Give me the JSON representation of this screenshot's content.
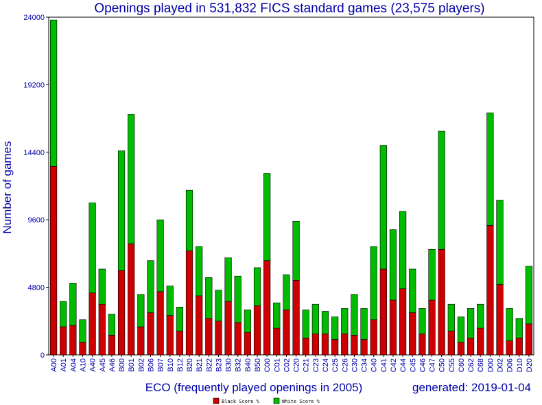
{
  "chart_data": {
    "type": "bar",
    "stacked": true,
    "title": "Openings played in 531,832 FICS standard games (23,575 players)",
    "xlabel": "ECO (frequently played openings in 2005)",
    "ylabel": "Number of games",
    "footer": "generated: 2019-01-04",
    "ylim": [
      0,
      24000
    ],
    "yticks": [
      "0",
      "4800",
      "9600",
      "14400",
      "19200",
      "24000"
    ],
    "ytick_values": [
      0,
      4800,
      9600,
      14400,
      19200,
      24000
    ],
    "grid": false,
    "legend_position": "bottom-center",
    "categories": [
      "A00",
      "A01",
      "A04",
      "A10",
      "A40",
      "A45",
      "A46",
      "B00",
      "B01",
      "B02",
      "B06",
      "B07",
      "B10",
      "B12",
      "B20",
      "B21",
      "B22",
      "B23",
      "B30",
      "B32",
      "B40",
      "B50",
      "C00",
      "C01",
      "C02",
      "C20",
      "C21",
      "C23",
      "C24",
      "C25",
      "C26",
      "C30",
      "C34",
      "C40",
      "C41",
      "C42",
      "C44",
      "C45",
      "C46",
      "C47",
      "C50",
      "C55",
      "C60",
      "C62",
      "C68",
      "D00",
      "D02",
      "D06",
      "D10",
      "D20"
    ],
    "series": [
      {
        "name": "Black Score %",
        "color": "#cc0000",
        "values": [
          13400,
          2000,
          2100,
          900,
          4400,
          3600,
          1400,
          6000,
          7900,
          2000,
          3000,
          4500,
          2800,
          1700,
          7400,
          4200,
          2600,
          2400,
          3800,
          2300,
          1600,
          3500,
          6700,
          1900,
          3200,
          5300,
          1200,
          1500,
          1500,
          1100,
          1500,
          1400,
          1100,
          2500,
          6100,
          3900,
          4700,
          3000,
          1500,
          3900,
          7500,
          1700,
          900,
          1200,
          1900,
          9200,
          5000,
          1000,
          1200,
          2200
        ]
      },
      {
        "name": "White Score %",
        "color": "#00bb00",
        "values": [
          10400,
          1800,
          3000,
          1600,
          6400,
          2500,
          1500,
          8500,
          9200,
          2300,
          3700,
          5100,
          2100,
          1700,
          4300,
          3500,
          2900,
          2200,
          3100,
          3300,
          1600,
          2700,
          6200,
          1800,
          2500,
          4200,
          2000,
          2100,
          1600,
          1600,
          1800,
          2900,
          2200,
          5200,
          8800,
          5000,
          5500,
          3100,
          1800,
          3600,
          8400,
          1900,
          1800,
          2100,
          1700,
          8000,
          6000,
          2300,
          1400,
          4100
        ]
      }
    ]
  }
}
